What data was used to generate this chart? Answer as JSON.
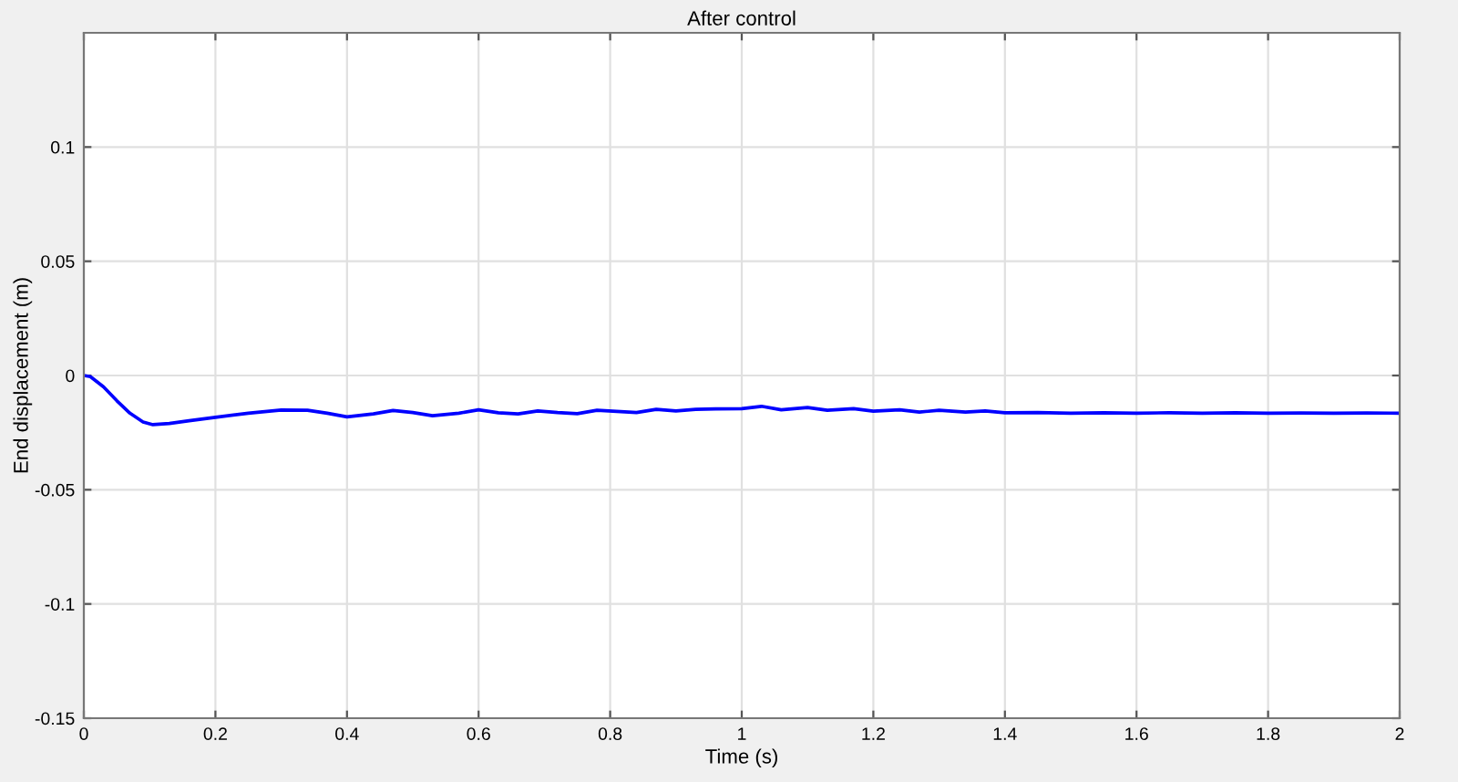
{
  "chart_data": {
    "type": "line",
    "title": "After control",
    "xlabel": "Time (s)",
    "ylabel": "End displacement (m)",
    "series": [
      {
        "color": "#0000ff",
        "x": [
          0,
          0.01,
          0.03,
          0.05,
          0.07,
          0.09,
          0.105,
          0.13,
          0.16,
          0.2,
          0.25,
          0.3,
          0.34,
          0.37,
          0.4,
          0.44,
          0.47,
          0.5,
          0.53,
          0.57,
          0.6,
          0.63,
          0.66,
          0.69,
          0.72,
          0.75,
          0.78,
          0.81,
          0.84,
          0.87,
          0.9,
          0.93,
          0.96,
          1.0,
          1.03,
          1.06,
          1.1,
          1.13,
          1.17,
          1.2,
          1.24,
          1.27,
          1.3,
          1.34,
          1.37,
          1.4,
          1.45,
          1.5,
          1.55,
          1.6,
          1.65,
          1.7,
          1.75,
          1.8,
          1.85,
          1.9,
          1.95,
          2.0
        ],
        "values": [
          0,
          -0.0005,
          -0.005,
          -0.011,
          -0.0165,
          -0.0203,
          -0.0215,
          -0.021,
          -0.0198,
          -0.0183,
          -0.0165,
          -0.0151,
          -0.0152,
          -0.0165,
          -0.0181,
          -0.0168,
          -0.0153,
          -0.0162,
          -0.0176,
          -0.0165,
          -0.015,
          -0.0163,
          -0.0168,
          -0.0155,
          -0.0162,
          -0.0167,
          -0.0152,
          -0.0157,
          -0.0162,
          -0.0148,
          -0.0155,
          -0.0148,
          -0.0146,
          -0.0145,
          -0.0135,
          -0.015,
          -0.014,
          -0.0152,
          -0.0145,
          -0.0156,
          -0.015,
          -0.016,
          -0.0152,
          -0.016,
          -0.0155,
          -0.0163,
          -0.0162,
          -0.0165,
          -0.0163,
          -0.0165,
          -0.0163,
          -0.0165,
          -0.0163,
          -0.0165,
          -0.0164,
          -0.0165,
          -0.0164,
          -0.0165
        ]
      }
    ],
    "xlim": [
      0,
      2
    ],
    "ylim": [
      -0.15,
      0.15
    ],
    "xticks": [
      0,
      0.2,
      0.4,
      0.6,
      0.8,
      1,
      1.2,
      1.4,
      1.6,
      1.8,
      2
    ],
    "yticks": [
      -0.15,
      -0.1,
      -0.05,
      0,
      0.05,
      0.1
    ],
    "grid": true,
    "legend": false
  }
}
